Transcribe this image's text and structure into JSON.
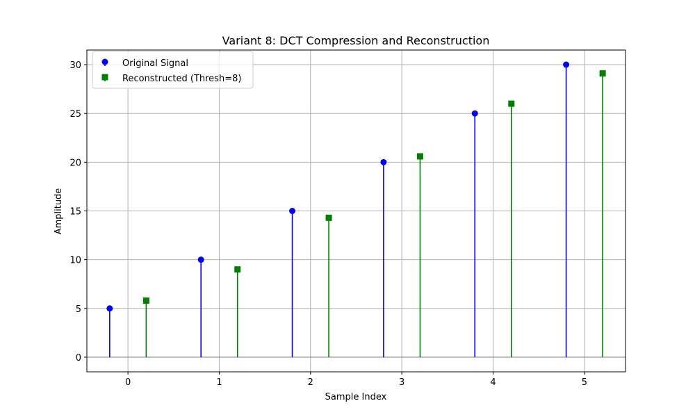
{
  "chart_data": {
    "type": "stem",
    "title": "Variant 8: DCT Compression and Reconstruction",
    "xlabel": "Sample Index",
    "ylabel": "Amplitude",
    "xlim": [
      -0.45,
      5.45
    ],
    "ylim": [
      -1.5,
      31.5
    ],
    "xticks": [
      0,
      1,
      2,
      3,
      4,
      5
    ],
    "yticks": [
      0,
      5,
      10,
      15,
      20,
      25,
      30
    ],
    "grid": true,
    "legend_position": "upper-left",
    "series": [
      {
        "name": "Original Signal",
        "color": "#0000ff",
        "marker": "circle",
        "x": [
          -0.2,
          0.8,
          1.8,
          2.8,
          3.8,
          4.8
        ],
        "values": [
          5,
          10,
          15,
          20,
          25,
          30
        ]
      },
      {
        "name": "Reconstructed (Thresh=8)",
        "color": "#008000",
        "marker": "square",
        "x": [
          0.2,
          1.2,
          2.2,
          3.2,
          4.2,
          5.2
        ],
        "values": [
          5.8,
          9.0,
          14.3,
          20.6,
          26.0,
          29.1
        ]
      }
    ],
    "baseline_color": "#808080",
    "grid_color": "#b0b0b0"
  }
}
